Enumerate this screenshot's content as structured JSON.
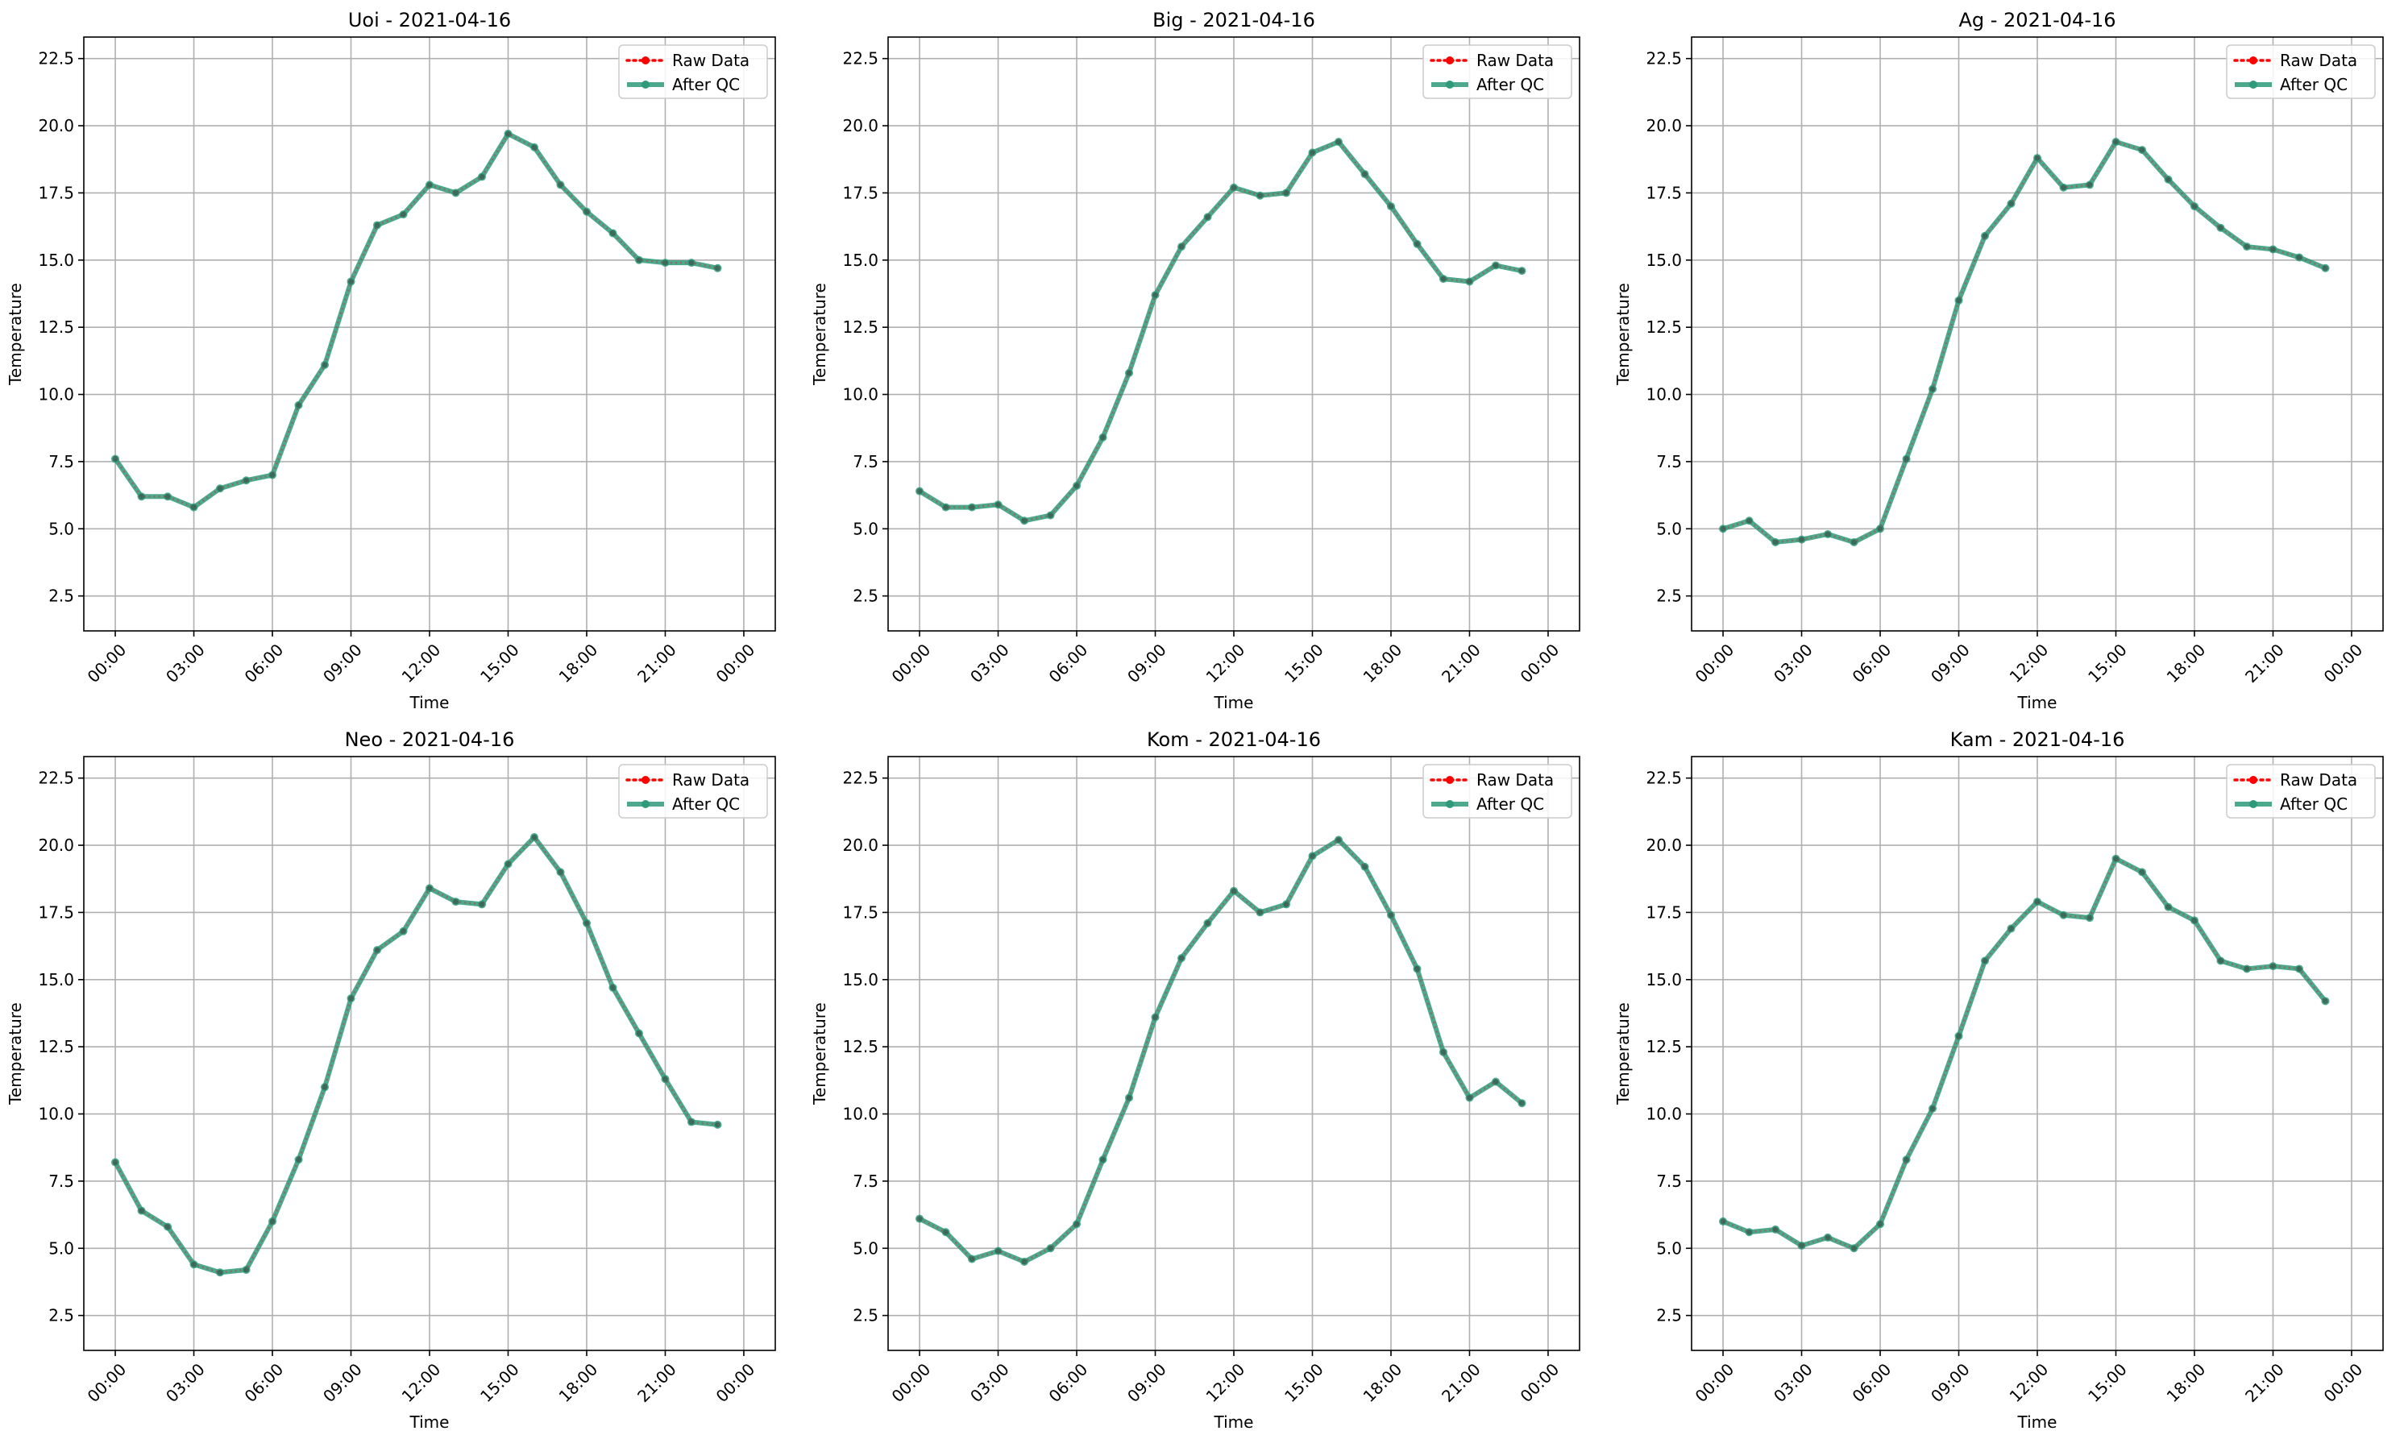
{
  "colors": {
    "raw": "#ff0000",
    "qc": "#2e9a7a",
    "grid": "#b0b0b0",
    "axis": "#000000"
  },
  "legend_labels": {
    "raw": "Raw Data",
    "qc": "After QC"
  },
  "chart_data": [
    {
      "type": "line",
      "title": "Uoi - 2021-04-16",
      "xlabel": "Time",
      "ylabel": "Temperature",
      "x": [
        "00:00",
        "01:00",
        "02:00",
        "03:00",
        "04:00",
        "05:00",
        "06:00",
        "07:00",
        "08:00",
        "09:00",
        "10:00",
        "11:00",
        "12:00",
        "13:00",
        "14:00",
        "15:00",
        "16:00",
        "17:00",
        "18:00",
        "19:00",
        "20:00",
        "21:00",
        "22:00",
        "23:00"
      ],
      "x_ticks": [
        "00:00",
        "03:00",
        "06:00",
        "09:00",
        "12:00",
        "15:00",
        "18:00",
        "21:00",
        "00:00"
      ],
      "y_ticks": [
        "2.5",
        "5.0",
        "7.5",
        "10.0",
        "12.5",
        "15.0",
        "17.5",
        "20.0",
        "22.5"
      ],
      "ylim": [
        1.2,
        23.3
      ],
      "grid": true,
      "legend": "top-right",
      "series": [
        {
          "name": "Raw Data",
          "values": [
            7.6,
            6.2,
            6.2,
            5.8,
            6.5,
            6.8,
            7.0,
            9.6,
            11.1,
            14.2,
            16.3,
            16.7,
            17.8,
            17.5,
            18.1,
            19.7,
            19.2,
            17.8,
            16.8,
            16.0,
            15.0,
            14.9,
            14.9,
            14.7
          ]
        },
        {
          "name": "After QC",
          "values": [
            7.6,
            6.2,
            6.2,
            5.8,
            6.5,
            6.8,
            7.0,
            9.6,
            11.1,
            14.2,
            16.3,
            16.7,
            17.8,
            17.5,
            18.1,
            19.7,
            19.2,
            17.8,
            16.8,
            16.0,
            15.0,
            14.9,
            14.9,
            14.7
          ]
        }
      ]
    },
    {
      "type": "line",
      "title": "Big - 2021-04-16",
      "xlabel": "Time",
      "ylabel": "Temperature",
      "x": [
        "00:00",
        "01:00",
        "02:00",
        "03:00",
        "04:00",
        "05:00",
        "06:00",
        "07:00",
        "08:00",
        "09:00",
        "10:00",
        "11:00",
        "12:00",
        "13:00",
        "14:00",
        "15:00",
        "16:00",
        "17:00",
        "18:00",
        "19:00",
        "20:00",
        "21:00",
        "22:00",
        "23:00"
      ],
      "x_ticks": [
        "00:00",
        "03:00",
        "06:00",
        "09:00",
        "12:00",
        "15:00",
        "18:00",
        "21:00",
        "00:00"
      ],
      "y_ticks": [
        "2.5",
        "5.0",
        "7.5",
        "10.0",
        "12.5",
        "15.0",
        "17.5",
        "20.0",
        "22.5"
      ],
      "ylim": [
        1.2,
        23.3
      ],
      "grid": true,
      "legend": "top-right",
      "series": [
        {
          "name": "Raw Data",
          "values": [
            6.4,
            5.8,
            5.8,
            5.9,
            5.3,
            5.5,
            6.6,
            8.4,
            10.8,
            13.7,
            15.5,
            16.6,
            17.7,
            17.4,
            17.5,
            19.0,
            19.4,
            18.2,
            17.0,
            15.6,
            14.3,
            14.2,
            14.8,
            14.6
          ]
        },
        {
          "name": "After QC",
          "values": [
            6.4,
            5.8,
            5.8,
            5.9,
            5.3,
            5.5,
            6.6,
            8.4,
            10.8,
            13.7,
            15.5,
            16.6,
            17.7,
            17.4,
            17.5,
            19.0,
            19.4,
            18.2,
            17.0,
            15.6,
            14.3,
            14.2,
            14.8,
            14.6
          ]
        }
      ]
    },
    {
      "type": "line",
      "title": "Ag - 2021-04-16",
      "xlabel": "Time",
      "ylabel": "Temperature",
      "x": [
        "00:00",
        "01:00",
        "02:00",
        "03:00",
        "04:00",
        "05:00",
        "06:00",
        "07:00",
        "08:00",
        "09:00",
        "10:00",
        "11:00",
        "12:00",
        "13:00",
        "14:00",
        "15:00",
        "16:00",
        "17:00",
        "18:00",
        "19:00",
        "20:00",
        "21:00",
        "22:00",
        "23:00"
      ],
      "x_ticks": [
        "00:00",
        "03:00",
        "06:00",
        "09:00",
        "12:00",
        "15:00",
        "18:00",
        "21:00",
        "00:00"
      ],
      "y_ticks": [
        "2.5",
        "5.0",
        "7.5",
        "10.0",
        "12.5",
        "15.0",
        "17.5",
        "20.0",
        "22.5"
      ],
      "ylim": [
        1.2,
        23.3
      ],
      "grid": true,
      "legend": "top-right",
      "series": [
        {
          "name": "Raw Data",
          "values": [
            5.0,
            5.3,
            4.5,
            4.6,
            4.8,
            4.5,
            5.0,
            7.6,
            10.2,
            13.5,
            15.9,
            17.1,
            18.8,
            17.7,
            17.8,
            19.4,
            19.1,
            18.0,
            17.0,
            16.2,
            15.5,
            15.4,
            15.1,
            14.7
          ]
        },
        {
          "name": "After QC",
          "values": [
            5.0,
            5.3,
            4.5,
            4.6,
            4.8,
            4.5,
            5.0,
            7.6,
            10.2,
            13.5,
            15.9,
            17.1,
            18.8,
            17.7,
            17.8,
            19.4,
            19.1,
            18.0,
            17.0,
            16.2,
            15.5,
            15.4,
            15.1,
            14.7
          ]
        }
      ]
    },
    {
      "type": "line",
      "title": "Neo - 2021-04-16",
      "xlabel": "Time",
      "ylabel": "Temperature",
      "x": [
        "00:00",
        "01:00",
        "02:00",
        "03:00",
        "04:00",
        "05:00",
        "06:00",
        "07:00",
        "08:00",
        "09:00",
        "10:00",
        "11:00",
        "12:00",
        "13:00",
        "14:00",
        "15:00",
        "16:00",
        "17:00",
        "18:00",
        "19:00",
        "20:00",
        "21:00",
        "22:00",
        "23:00"
      ],
      "x_ticks": [
        "00:00",
        "03:00",
        "06:00",
        "09:00",
        "12:00",
        "15:00",
        "18:00",
        "21:00",
        "00:00"
      ],
      "y_ticks": [
        "2.5",
        "5.0",
        "7.5",
        "10.0",
        "12.5",
        "15.0",
        "17.5",
        "20.0",
        "22.5"
      ],
      "ylim": [
        1.2,
        23.3
      ],
      "grid": true,
      "legend": "top-right",
      "series": [
        {
          "name": "Raw Data",
          "values": [
            8.2,
            6.4,
            5.8,
            4.4,
            4.1,
            4.2,
            6.0,
            8.3,
            11.0,
            14.3,
            16.1,
            16.8,
            18.4,
            17.9,
            17.8,
            19.3,
            20.3,
            19.0,
            17.1,
            14.7,
            13.0,
            11.3,
            9.7,
            9.6
          ]
        },
        {
          "name": "After QC",
          "values": [
            8.2,
            6.4,
            5.8,
            4.4,
            4.1,
            4.2,
            6.0,
            8.3,
            11.0,
            14.3,
            16.1,
            16.8,
            18.4,
            17.9,
            17.8,
            19.3,
            20.3,
            19.0,
            17.1,
            14.7,
            13.0,
            11.3,
            9.7,
            9.6
          ]
        }
      ]
    },
    {
      "type": "line",
      "title": "Kom - 2021-04-16",
      "xlabel": "Time",
      "ylabel": "Temperature",
      "x": [
        "00:00",
        "01:00",
        "02:00",
        "03:00",
        "04:00",
        "05:00",
        "06:00",
        "07:00",
        "08:00",
        "09:00",
        "10:00",
        "11:00",
        "12:00",
        "13:00",
        "14:00",
        "15:00",
        "16:00",
        "17:00",
        "18:00",
        "19:00",
        "20:00",
        "21:00",
        "22:00",
        "23:00"
      ],
      "x_ticks": [
        "00:00",
        "03:00",
        "06:00",
        "09:00",
        "12:00",
        "15:00",
        "18:00",
        "21:00",
        "00:00"
      ],
      "y_ticks": [
        "2.5",
        "5.0",
        "7.5",
        "10.0",
        "12.5",
        "15.0",
        "17.5",
        "20.0",
        "22.5"
      ],
      "ylim": [
        1.2,
        23.3
      ],
      "grid": true,
      "legend": "top-right",
      "series": [
        {
          "name": "Raw Data",
          "values": [
            6.1,
            5.6,
            4.6,
            4.9,
            4.5,
            5.0,
            5.9,
            8.3,
            10.6,
            13.6,
            15.8,
            17.1,
            18.3,
            17.5,
            17.8,
            19.6,
            20.2,
            19.2,
            17.4,
            15.4,
            12.3,
            10.6,
            11.2,
            10.4
          ]
        },
        {
          "name": "After QC",
          "values": [
            6.1,
            5.6,
            4.6,
            4.9,
            4.5,
            5.0,
            5.9,
            8.3,
            10.6,
            13.6,
            15.8,
            17.1,
            18.3,
            17.5,
            17.8,
            19.6,
            20.2,
            19.2,
            17.4,
            15.4,
            12.3,
            10.6,
            11.2,
            10.4
          ]
        }
      ]
    },
    {
      "type": "line",
      "title": "Kam - 2021-04-16",
      "xlabel": "Time",
      "ylabel": "Temperature",
      "x": [
        "00:00",
        "01:00",
        "02:00",
        "03:00",
        "04:00",
        "05:00",
        "06:00",
        "07:00",
        "08:00",
        "09:00",
        "10:00",
        "11:00",
        "12:00",
        "13:00",
        "14:00",
        "15:00",
        "16:00",
        "17:00",
        "18:00",
        "19:00",
        "20:00",
        "21:00",
        "22:00",
        "23:00"
      ],
      "x_ticks": [
        "00:00",
        "03:00",
        "06:00",
        "09:00",
        "12:00",
        "15:00",
        "18:00",
        "21:00",
        "00:00"
      ],
      "y_ticks": [
        "2.5",
        "5.0",
        "7.5",
        "10.0",
        "12.5",
        "15.0",
        "17.5",
        "20.0",
        "22.5"
      ],
      "ylim": [
        1.2,
        23.3
      ],
      "grid": true,
      "legend": "top-right",
      "series": [
        {
          "name": "Raw Data",
          "values": [
            6.0,
            5.6,
            5.7,
            5.1,
            5.4,
            5.0,
            5.9,
            8.3,
            10.2,
            12.9,
            15.7,
            16.9,
            17.9,
            17.4,
            17.3,
            19.5,
            19.0,
            17.7,
            17.2,
            15.7,
            15.4,
            15.5,
            15.4,
            14.2
          ]
        },
        {
          "name": "After QC",
          "values": [
            6.0,
            5.6,
            5.7,
            5.1,
            5.4,
            5.0,
            5.9,
            8.3,
            10.2,
            12.9,
            15.7,
            16.9,
            17.9,
            17.4,
            17.3,
            19.5,
            19.0,
            17.7,
            17.2,
            15.7,
            15.4,
            15.5,
            15.4,
            14.2
          ]
        }
      ]
    }
  ]
}
